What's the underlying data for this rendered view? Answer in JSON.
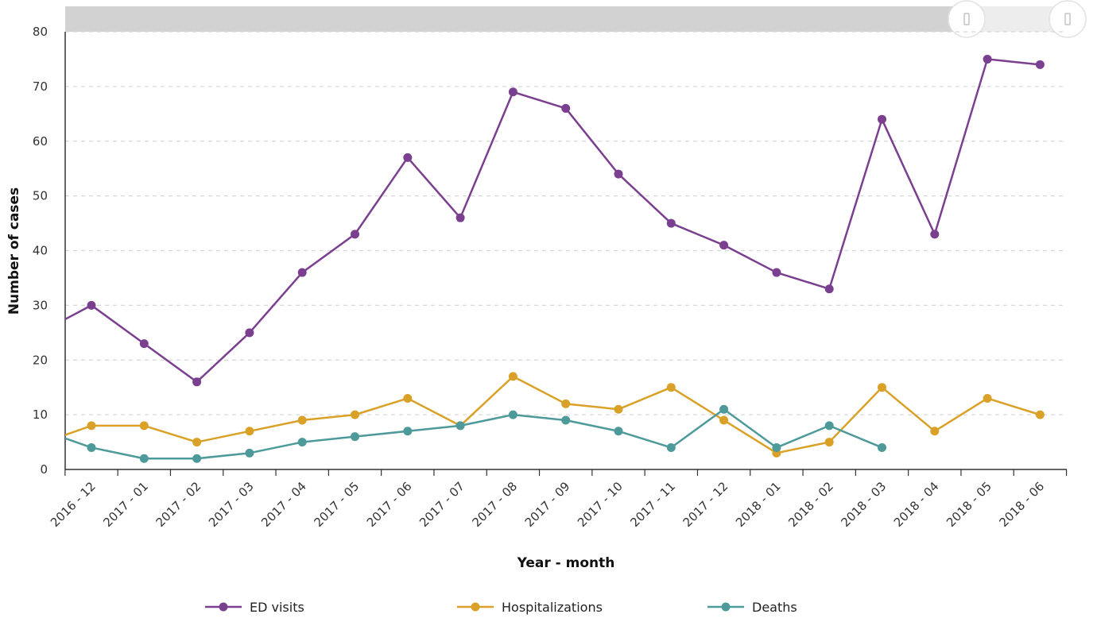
{
  "chart_data": {
    "type": "line",
    "xlabel": "Year - month",
    "ylabel": "Number of cases",
    "ylim": [
      0,
      80
    ],
    "yticks": [
      0,
      10,
      20,
      30,
      40,
      50,
      60,
      70,
      80
    ],
    "grid": true,
    "legend_position": "bottom",
    "categories": [
      "2016 - 12",
      "2017 - 01",
      "2017 - 02",
      "2017 - 03",
      "2017 - 04",
      "2017 - 05",
      "2017 - 06",
      "2017 - 07",
      "2017 - 08",
      "2017 - 09",
      "2017 - 10",
      "2017 - 11",
      "2017 - 12",
      "2018 - 01",
      "2018 - 02",
      "2018 - 03",
      "2018 - 04",
      "2018 - 05",
      "2018 - 06"
    ],
    "series": [
      {
        "name": "ED visits",
        "color": "#7b3f8f",
        "start_value": 27,
        "values": [
          30,
          23,
          16,
          25,
          36,
          43,
          57,
          46,
          69,
          66,
          54,
          45,
          41,
          36,
          33,
          64,
          43,
          75,
          74
        ]
      },
      {
        "name": "Hospitalizations",
        "color": "#d9a127",
        "start_value": 6,
        "values": [
          8,
          8,
          5,
          7,
          9,
          10,
          13,
          8,
          17,
          12,
          11,
          15,
          9,
          3,
          5,
          15,
          7,
          13,
          10
        ]
      },
      {
        "name": "Deaths",
        "color": "#4e9a9a",
        "start_value": 6,
        "values": [
          4,
          2,
          2,
          3,
          5,
          6,
          7,
          8,
          10,
          9,
          7,
          4,
          11,
          4,
          8,
          4,
          null,
          null,
          null
        ]
      }
    ],
    "range_selector": {
      "start": 0,
      "end": 0.9
    }
  }
}
